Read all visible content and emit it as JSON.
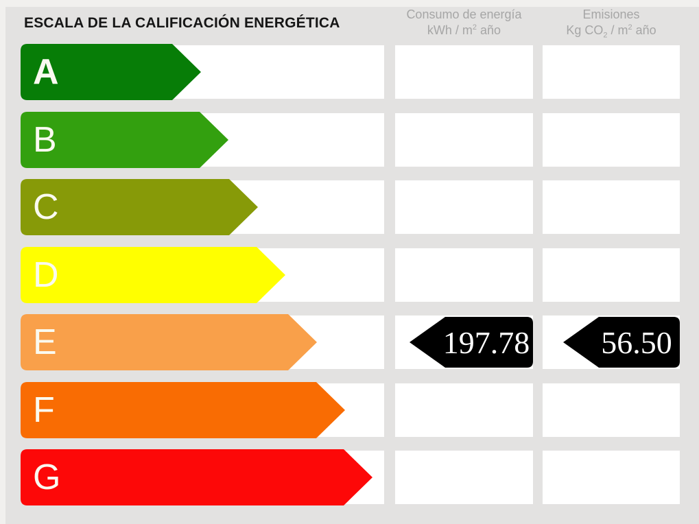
{
  "title": "ESCALA DE LA CALIFICACIÓN ENERGÉTICA",
  "header": {
    "consumo": {
      "line1": "Consumo de energía",
      "l2a": "kWh / m",
      "l2sup": "2",
      "l2b": " año"
    },
    "emisiones": {
      "line1": "Emisiones",
      "l2a": "Kg CO",
      "l2sub": "2",
      "l2b": " / m",
      "l2sup": "2",
      "l2c": " año"
    }
  },
  "scale": {
    "ratings": [
      {
        "label": "A",
        "color": "#077d07",
        "arrow_length": 263
      },
      {
        "label": "B",
        "color": "#33a00f",
        "arrow_length": 303
      },
      {
        "label": "C",
        "color": "#879a08",
        "arrow_length": 346
      },
      {
        "label": "D",
        "color": "#ffff00",
        "arrow_length": 386
      },
      {
        "label": "E",
        "color": "#f9a04a",
        "arrow_length": 432
      },
      {
        "label": "F",
        "color": "#f96c03",
        "arrow_length": 473
      },
      {
        "label": "G",
        "color": "#fd0808",
        "arrow_length": 513
      }
    ]
  },
  "result": {
    "rating": "E",
    "consumo_value": "197.78",
    "emisiones_value": "56.50"
  },
  "colors": {
    "background": "#e3e2e1",
    "border": "#f1f0ee",
    "row_bg": "#ffffff",
    "header_text": "#a6a6a6",
    "title_text": "#161616",
    "badge": "#000000",
    "letter_text": "#fafaf0",
    "value_text": "#ffffff"
  },
  "chart_data": {
    "type": "bar",
    "title": "ESCALA DE LA CALIFICACIÓN ENERGÉTICA",
    "categories": [
      "A",
      "B",
      "C",
      "D",
      "E",
      "F",
      "G"
    ],
    "series": [
      {
        "name": "arrow_length_px",
        "values": [
          263,
          303,
          346,
          386,
          432,
          473,
          513
        ]
      }
    ],
    "bar_colors": [
      "#077d07",
      "#33a00f",
      "#879a08",
      "#ffff00",
      "#f9a04a",
      "#f96c03",
      "#fd0808"
    ],
    "columns": [
      {
        "label": "Consumo de energía kWh / m2 año",
        "value": 197.78,
        "value_row": "E"
      },
      {
        "label": "Emisiones Kg CO2 / m2 año",
        "value": 56.5,
        "value_row": "E"
      }
    ],
    "assigned_rating": "E",
    "legend": false,
    "grid": false,
    "orientation": "horizontal"
  }
}
